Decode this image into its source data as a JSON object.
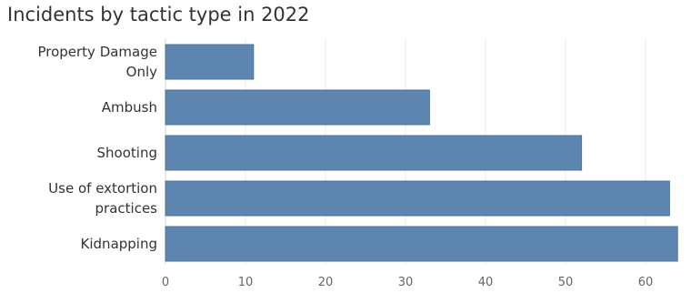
{
  "chart_data": {
    "type": "bar",
    "orientation": "horizontal",
    "title": "Incidents by tactic type in 2022",
    "xlabel": "",
    "ylabel": "",
    "categories": [
      [
        "Property Damage",
        "Only"
      ],
      [
        "Ambush"
      ],
      [
        "Shooting"
      ],
      [
        "Use of extortion",
        "practices"
      ],
      [
        "Kidnapping"
      ]
    ],
    "values": [
      11,
      33,
      52,
      63,
      64
    ],
    "xlim": [
      0,
      64
    ],
    "xticks": [
      "0",
      "10",
      "20",
      "30",
      "40",
      "50",
      "60"
    ],
    "grid": true,
    "bar_color": "#5F86B0",
    "bar_border_color": "#4E7299"
  }
}
